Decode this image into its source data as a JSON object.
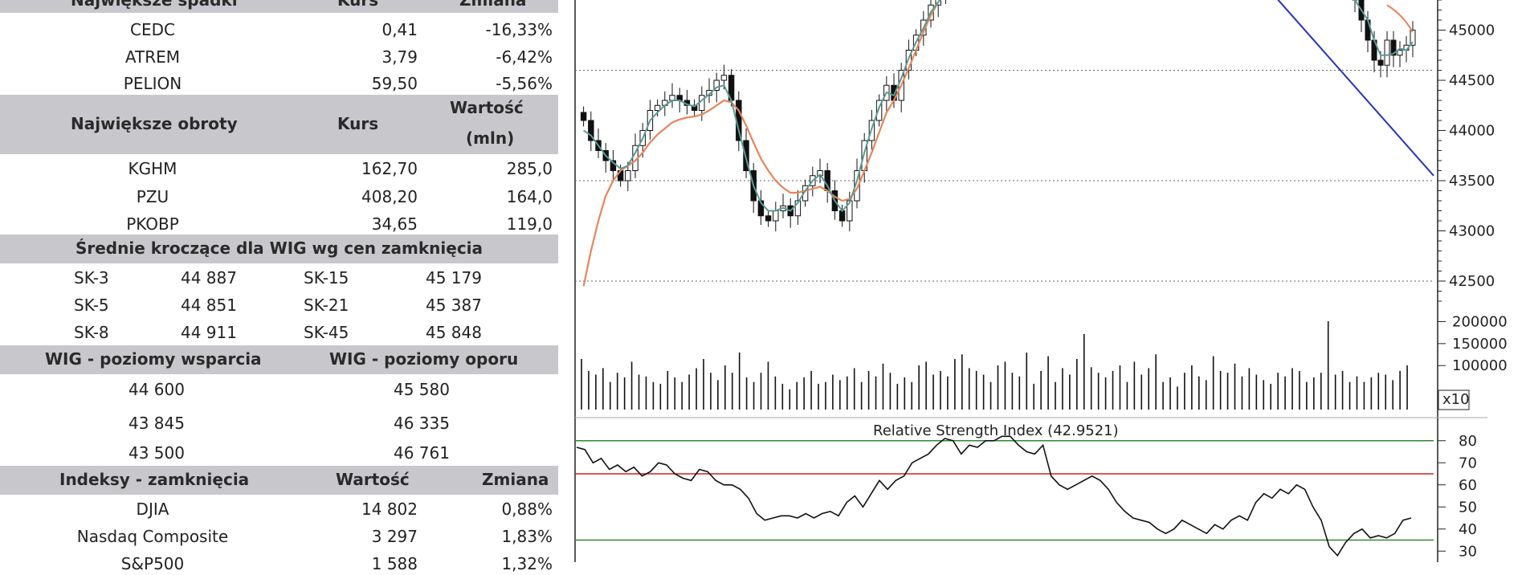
{
  "tables": {
    "decliners": {
      "headers": [
        "Największe spadki",
        "Kurs",
        "Zmiana"
      ],
      "rows": [
        [
          "CEDC",
          "0,41",
          "-16,33%"
        ],
        [
          "ATREM",
          "3,79",
          "-6,42%"
        ],
        [
          "PELION",
          "59,50",
          "-5,56%"
        ]
      ]
    },
    "turnover": {
      "headers": [
        "Największe obroty",
        "Kurs",
        "Wartość",
        "(mln)"
      ],
      "rows": [
        [
          "KGHM",
          "162,70",
          "285,0"
        ],
        [
          "PZU",
          "408,20",
          "164,0"
        ],
        [
          "PKOBP",
          "34,65",
          "119,0"
        ]
      ]
    },
    "moving_averages": {
      "title": "Średnie kroczące dla WIG wg cen zamknięcia",
      "rows": [
        [
          "SK-3",
          "44 887",
          "SK-15",
          "45 179"
        ],
        [
          "SK-5",
          "44 851",
          "SK-21",
          "45 387"
        ],
        [
          "SK-8",
          "44 911",
          "SK-45",
          "45 848"
        ]
      ]
    },
    "levels": {
      "headers": [
        "WIG - poziomy wsparcia",
        "WIG - poziomy oporu"
      ],
      "rows": [
        [
          "44 600",
          "45 580"
        ],
        [
          "43 845",
          "46 335"
        ],
        [
          "43 500",
          "46 761"
        ]
      ]
    },
    "indices": {
      "headers": [
        "Indeksy - zamknięcia",
        "Wartość",
        "Zmiana"
      ],
      "rows": [
        [
          "DJIA",
          "14 802",
          "0,88%"
        ],
        [
          "Nasdaq Composite",
          "3 297",
          "1,83%"
        ],
        [
          "S&P500",
          "1 588",
          "1,32%"
        ]
      ]
    }
  },
  "chart_data": [
    {
      "type": "candlestick",
      "title": "",
      "y_ticks": [
        42500,
        43000,
        43500,
        44000,
        44500,
        45000
      ],
      "ylim": [
        42300,
        45300
      ],
      "dotted_levels": [
        42500,
        43500,
        44600
      ],
      "ohlc_close": [
        44100,
        43900,
        43800,
        43700,
        43600,
        43500,
        43600,
        43850,
        44000,
        44200,
        44250,
        44300,
        44350,
        44300,
        44250,
        44200,
        44350,
        44400,
        44500,
        44550,
        44300,
        43900,
        43600,
        43300,
        43150,
        43100,
        43200,
        43250,
        43150,
        43300,
        43450,
        43550,
        43600,
        43400,
        43200,
        43100,
        43300,
        43600,
        43900,
        44100,
        44300,
        44450,
        44300,
        44600,
        44800,
        44950,
        45100,
        45250,
        45350,
        45400
      ],
      "ma_fast": [
        44000,
        43950,
        43850,
        43750,
        43680,
        43620,
        43650,
        43780,
        43920,
        44100,
        44180,
        44250,
        44300,
        44300,
        44260,
        44240,
        44300,
        44360,
        44430,
        44450,
        44300,
        44000,
        43720,
        43450,
        43280,
        43200,
        43200,
        43230,
        43200,
        43280,
        43400,
        43500,
        43560,
        43450,
        43300,
        43200,
        43280,
        43500,
        43780,
        44020,
        44230,
        44380,
        44350,
        44520,
        44720,
        44880,
        45020,
        45180,
        45280,
        45350
      ],
      "ma_slow": [
        42450,
        42800,
        43100,
        43350,
        43500,
        43600,
        43650,
        43700,
        43780,
        43880,
        43960,
        44020,
        44080,
        44110,
        44130,
        44140,
        44160,
        44200,
        44250,
        44300,
        44280,
        44200,
        44050,
        43880,
        43720,
        43600,
        43500,
        43430,
        43380,
        43380,
        43400,
        43420,
        43440,
        43400,
        43340,
        43300,
        43320,
        43420,
        43600,
        43780,
        43980,
        44180,
        44300,
        44450,
        44620,
        44800,
        44980,
        45150,
        45280,
        45380
      ],
      "tail_close": [
        45300,
        45100,
        44900,
        44700,
        44650,
        44900,
        44750,
        44800,
        44850,
        45000
      ],
      "trendline": {
        "from": [
          0,
          46200
        ],
        "to": [
          1,
          43550
        ]
      }
    },
    {
      "type": "bar",
      "title": "",
      "y_ticks": [
        100000,
        150000,
        200000
      ],
      "y_tick_labels": [
        "100000",
        "150000",
        "200000"
      ],
      "multiplier_label": "x10",
      "values": [
        55,
        42,
        38,
        45,
        30,
        40,
        35,
        52,
        38,
        36,
        30,
        28,
        42,
        35,
        30,
        38,
        45,
        55,
        40,
        32,
        48,
        40,
        62,
        35,
        30,
        40,
        52,
        36,
        28,
        22,
        30,
        35,
        42,
        28,
        30,
        38,
        32,
        36,
        45,
        30,
        42,
        36,
        50,
        40,
        28,
        35,
        30,
        48,
        52,
        38,
        42,
        36,
        55,
        60,
        45,
        42,
        38,
        30,
        48,
        52,
        40,
        36,
        62,
        28,
        42,
        58,
        30,
        45,
        38,
        55,
        82,
        46,
        40,
        35,
        42,
        48,
        30,
        52,
        38,
        45,
        60,
        30,
        35,
        25,
        40,
        48,
        36,
        32,
        58,
        42,
        40,
        50,
        36,
        45,
        38,
        32,
        28,
        40,
        36,
        45,
        42,
        30,
        35,
        40,
        96,
        38,
        42,
        30,
        36,
        30,
        35,
        40,
        38,
        32,
        42,
        48
      ],
      "ylim": [
        0,
        210000
      ]
    },
    {
      "type": "line",
      "title": "Relative Strength Index (42.9521)",
      "y_ticks": [
        30,
        40,
        50,
        60,
        70,
        80
      ],
      "ylim": [
        25,
        85
      ],
      "reference_lines": [
        {
          "value": 80,
          "color": "#2e8b2e"
        },
        {
          "value": 65,
          "color": "#cc2222"
        },
        {
          "value": 35,
          "color": "#2e8b2e"
        }
      ],
      "values": [
        77,
        76,
        70,
        72,
        67,
        69,
        66,
        68,
        64,
        66,
        70,
        69,
        65,
        63,
        62,
        67,
        66,
        62,
        60,
        60,
        58,
        54,
        47,
        44,
        45,
        46,
        46,
        45,
        47,
        45,
        47,
        48,
        46,
        52,
        55,
        50,
        56,
        62,
        58,
        62,
        64,
        70,
        72,
        74,
        78,
        81,
        80,
        74,
        78,
        77,
        80,
        80,
        82,
        82,
        78,
        75,
        74,
        78,
        64,
        60,
        58,
        60,
        62,
        64,
        62,
        58,
        52,
        48,
        45,
        44,
        43,
        40,
        38,
        40,
        44,
        42,
        40,
        38,
        42,
        40,
        44,
        46,
        44,
        52,
        56,
        54,
        58,
        56,
        60,
        58,
        50,
        44,
        32,
        28,
        34,
        38,
        40,
        36,
        37,
        36,
        38,
        44,
        45
      ]
    }
  ]
}
